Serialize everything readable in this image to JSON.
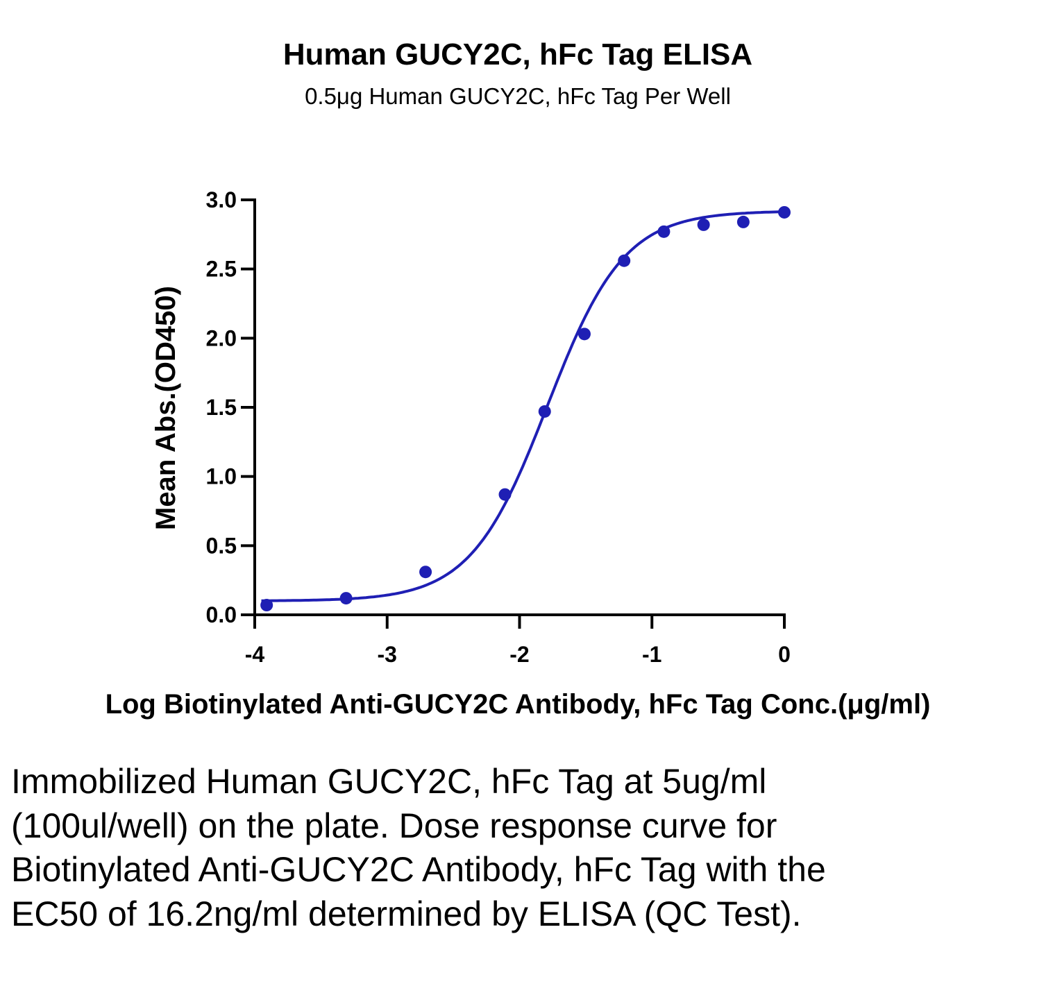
{
  "chart_data": {
    "type": "scatter",
    "title": "Human GUCY2C, hFc Tag ELISA",
    "subtitle": "0.5μg Human GUCY2C, hFc Tag Per Well",
    "xlabel": "Log Biotinylated Anti-GUCY2C Antibody, hFc Tag Conc.(μg/ml)",
    "ylabel": "Mean Abs.(OD450)",
    "xlim": [
      -4,
      0
    ],
    "ylim": [
      0,
      3.0
    ],
    "x_ticks": [
      -4,
      -3,
      -2,
      -1,
      0
    ],
    "x_tick_labels": [
      "-4",
      "-3",
      "-2",
      "-1",
      "0"
    ],
    "y_ticks": [
      0,
      0.5,
      1.0,
      1.5,
      2.0,
      2.5,
      3.0
    ],
    "y_tick_labels": [
      "0.0",
      "0.5",
      "1.0",
      "1.5",
      "2.0",
      "2.5",
      "3.0"
    ],
    "grid": false,
    "legend": "none",
    "series": [
      {
        "color": "#1f1fb4",
        "points": [
          {
            "x": -3.91,
            "y": 0.07
          },
          {
            "x": -3.31,
            "y": 0.12
          },
          {
            "x": -2.71,
            "y": 0.31
          },
          {
            "x": -2.11,
            "y": 0.87
          },
          {
            "x": -1.81,
            "y": 1.47
          },
          {
            "x": -1.51,
            "y": 2.03
          },
          {
            "x": -1.21,
            "y": 2.56
          },
          {
            "x": -0.91,
            "y": 2.77
          },
          {
            "x": -0.61,
            "y": 2.82
          },
          {
            "x": -0.31,
            "y": 2.84
          },
          {
            "x": 0.0,
            "y": 2.91
          }
        ],
        "fit": "4PL",
        "fit_params": {
          "bottom": 0.1,
          "top": 2.92,
          "log_ec50": -1.79,
          "hill": 1.5
        }
      }
    ]
  },
  "caption": "Immobilized Human GUCY2C, hFc Tag at 5ug/ml (100ul/well) on the plate. Dose response curve for Biotinylated Anti-GUCY2C Antibody, hFc Tag with the EC50 of 16.2ng/ml determined by ELISA (QC Test)."
}
